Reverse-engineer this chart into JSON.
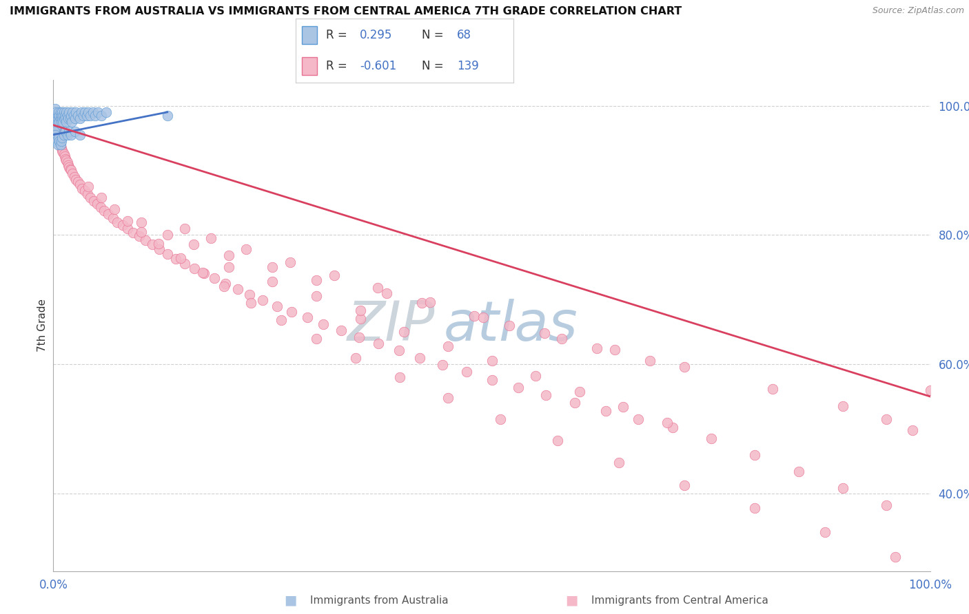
{
  "title": "IMMIGRANTS FROM AUSTRALIA VS IMMIGRANTS FROM CENTRAL AMERICA 7TH GRADE CORRELATION CHART",
  "source": "Source: ZipAtlas.com",
  "xlabel_bottom": "Immigrants from Australia",
  "xlabel_bottom2": "Immigrants from Central America",
  "ylabel": "7th Grade",
  "xlim": [
    0,
    1.0
  ],
  "ylim": [
    0.28,
    1.04
  ],
  "ytick_labels": [
    "40.0%",
    "60.0%",
    "80.0%",
    "100.0%"
  ],
  "ytick_values": [
    0.4,
    0.6,
    0.8,
    1.0
  ],
  "xtick_labels": [
    "0.0%",
    "100.0%"
  ],
  "xtick_values": [
    0.0,
    1.0
  ],
  "legend_R1": "0.295",
  "legend_N1": "68",
  "legend_R2": "-0.601",
  "legend_N2": "139",
  "color_australia_fill": "#aac4e4",
  "color_australia_edge": "#5b9bd5",
  "color_central_fill": "#f4b8c8",
  "color_central_edge": "#e87090",
  "color_line_australia": "#4472c4",
  "color_line_central": "#d94060",
  "watermark_ZIP": "#c0ccd8",
  "watermark_atlas": "#b8cce0",
  "bg_color": "#ffffff",
  "grid_color": "#d0d0d0",
  "tick_color": "#4472c4",
  "aus_x": [
    0.001,
    0.002,
    0.002,
    0.003,
    0.003,
    0.004,
    0.004,
    0.005,
    0.005,
    0.006,
    0.006,
    0.007,
    0.007,
    0.008,
    0.008,
    0.009,
    0.009,
    0.01,
    0.01,
    0.011,
    0.011,
    0.012,
    0.012,
    0.013,
    0.014,
    0.015,
    0.015,
    0.016,
    0.017,
    0.018,
    0.019,
    0.02,
    0.021,
    0.022,
    0.023,
    0.025,
    0.026,
    0.028,
    0.03,
    0.032,
    0.034,
    0.036,
    0.038,
    0.04,
    0.042,
    0.045,
    0.048,
    0.051,
    0.055,
    0.06,
    0.001,
    0.002,
    0.003,
    0.004,
    0.005,
    0.006,
    0.007,
    0.008,
    0.009,
    0.01,
    0.012,
    0.014,
    0.016,
    0.018,
    0.02,
    0.025,
    0.03,
    0.13
  ],
  "aus_y": [
    0.985,
    0.975,
    0.995,
    0.965,
    0.99,
    0.98,
    0.97,
    0.985,
    0.975,
    0.99,
    0.98,
    0.985,
    0.975,
    0.99,
    0.98,
    0.985,
    0.975,
    0.99,
    0.98,
    0.985,
    0.975,
    0.99,
    0.98,
    0.985,
    0.98,
    0.99,
    0.975,
    0.985,
    0.98,
    0.99,
    0.98,
    0.985,
    0.975,
    0.99,
    0.985,
    0.98,
    0.99,
    0.985,
    0.98,
    0.99,
    0.985,
    0.99,
    0.985,
    0.99,
    0.985,
    0.99,
    0.985,
    0.99,
    0.985,
    0.99,
    0.96,
    0.955,
    0.95,
    0.945,
    0.94,
    0.95,
    0.945,
    0.94,
    0.945,
    0.95,
    0.955,
    0.96,
    0.955,
    0.96,
    0.955,
    0.96,
    0.955,
    0.985
  ],
  "cen_x": [
    0.001,
    0.002,
    0.003,
    0.004,
    0.005,
    0.006,
    0.007,
    0.008,
    0.009,
    0.01,
    0.011,
    0.012,
    0.013,
    0.014,
    0.015,
    0.016,
    0.017,
    0.018,
    0.019,
    0.02,
    0.022,
    0.024,
    0.026,
    0.028,
    0.03,
    0.033,
    0.036,
    0.039,
    0.042,
    0.046,
    0.05,
    0.054,
    0.058,
    0.063,
    0.068,
    0.073,
    0.079,
    0.085,
    0.091,
    0.098,
    0.105,
    0.113,
    0.121,
    0.13,
    0.14,
    0.15,
    0.161,
    0.172,
    0.184,
    0.196,
    0.21,
    0.224,
    0.239,
    0.255,
    0.272,
    0.29,
    0.308,
    0.328,
    0.349,
    0.371,
    0.394,
    0.418,
    0.444,
    0.471,
    0.5,
    0.53,
    0.562,
    0.595,
    0.63,
    0.667,
    0.706,
    0.1,
    0.13,
    0.16,
    0.2,
    0.25,
    0.3,
    0.38,
    0.42,
    0.48,
    0.52,
    0.58,
    0.62,
    0.68,
    0.15,
    0.18,
    0.22,
    0.27,
    0.32,
    0.37,
    0.43,
    0.49,
    0.56,
    0.64,
    0.72,
    0.82,
    0.9,
    0.95,
    0.98,
    1.0,
    0.04,
    0.055,
    0.07,
    0.085,
    0.1,
    0.12,
    0.145,
    0.17,
    0.195,
    0.225,
    0.26,
    0.3,
    0.345,
    0.395,
    0.45,
    0.51,
    0.575,
    0.645,
    0.72,
    0.8,
    0.88,
    0.96,
    0.35,
    0.4,
    0.45,
    0.5,
    0.55,
    0.6,
    0.65,
    0.7,
    0.75,
    0.8,
    0.85,
    0.9,
    0.95,
    0.2,
    0.25,
    0.3,
    0.35
  ],
  "cen_y": [
    0.975,
    0.97,
    0.965,
    0.96,
    0.955,
    0.95,
    0.945,
    0.94,
    0.935,
    0.93,
    0.928,
    0.925,
    0.922,
    0.918,
    0.915,
    0.912,
    0.908,
    0.905,
    0.902,
    0.9,
    0.895,
    0.89,
    0.885,
    0.882,
    0.878,
    0.872,
    0.868,
    0.863,
    0.858,
    0.852,
    0.848,
    0.843,
    0.838,
    0.832,
    0.826,
    0.82,
    0.815,
    0.81,
    0.804,
    0.798,
    0.792,
    0.785,
    0.778,
    0.771,
    0.763,
    0.756,
    0.748,
    0.741,
    0.733,
    0.725,
    0.716,
    0.708,
    0.699,
    0.69,
    0.681,
    0.672,
    0.662,
    0.652,
    0.642,
    0.632,
    0.621,
    0.61,
    0.599,
    0.588,
    0.576,
    0.564,
    0.552,
    0.54,
    0.528,
    0.515,
    0.502,
    0.82,
    0.8,
    0.785,
    0.768,
    0.75,
    0.73,
    0.71,
    0.695,
    0.675,
    0.66,
    0.64,
    0.625,
    0.605,
    0.81,
    0.795,
    0.778,
    0.758,
    0.738,
    0.718,
    0.696,
    0.672,
    0.648,
    0.622,
    0.596,
    0.562,
    0.535,
    0.515,
    0.498,
    0.56,
    0.875,
    0.858,
    0.84,
    0.822,
    0.805,
    0.786,
    0.764,
    0.742,
    0.72,
    0.695,
    0.668,
    0.64,
    0.61,
    0.58,
    0.548,
    0.515,
    0.482,
    0.448,
    0.413,
    0.377,
    0.34,
    0.302,
    0.67,
    0.65,
    0.628,
    0.605,
    0.582,
    0.558,
    0.534,
    0.51,
    0.485,
    0.46,
    0.434,
    0.408,
    0.382,
    0.75,
    0.728,
    0.706,
    0.683
  ]
}
